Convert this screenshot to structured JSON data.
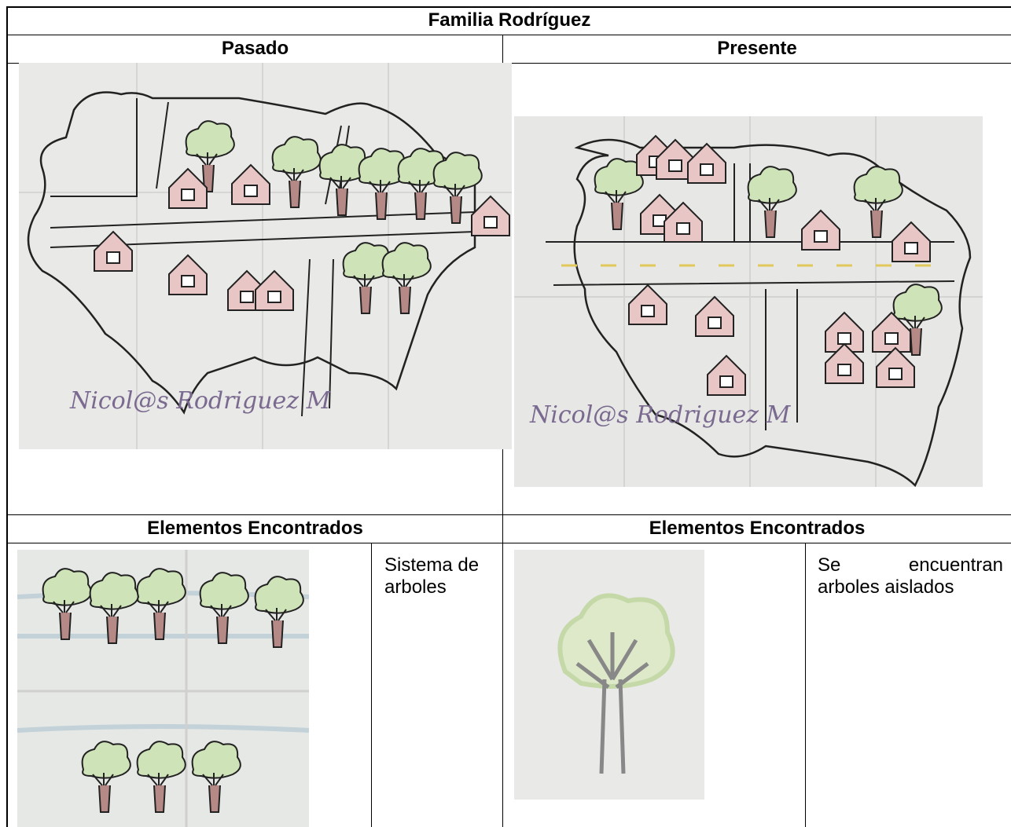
{
  "header": {
    "title": "Familia Rodríguez"
  },
  "table": {
    "columns": [
      "Pasado",
      "Presente"
    ],
    "maps": [
      {
        "signature": "Nicol@s Rodriguez M"
      },
      {
        "signature": "Nicol@s Rodriguez M"
      }
    ],
    "elements_header": [
      "Elementos Encontrados",
      "Elementos Encontrados"
    ],
    "elements": [
      "Sistema de arboles",
      "Se encuentran arboles aislados"
    ]
  }
}
